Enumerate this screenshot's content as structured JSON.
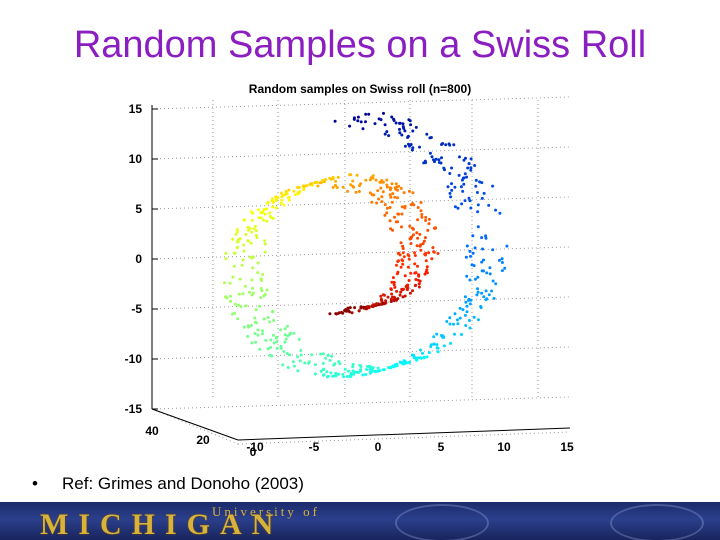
{
  "slide": {
    "title": "Random Samples on a Swiss Roll",
    "bullet": "•",
    "reference": "Ref: Grimes and Donoho (2003)"
  },
  "footer": {
    "logo_text": "MICHIGAN",
    "university_text": "University of"
  },
  "chart_data": {
    "type": "scatter",
    "title": "Random samples on Swiss roll (n=800)",
    "zlim": [
      -15,
      15
    ],
    "z_ticks": [
      "15",
      "10",
      "5",
      "0",
      "-5",
      "-10",
      "-15"
    ],
    "x_ticks": [
      "-10",
      "-5",
      "0",
      "5",
      "10",
      "15"
    ],
    "y_ticks": [
      "40",
      "20",
      "0"
    ],
    "n": 800,
    "manifold": "swiss roll",
    "colormap": [
      "#00008f",
      "#0060ff",
      "#00ffff",
      "#80ff80",
      "#ffff00",
      "#ff8000",
      "#ff2000",
      "#800000"
    ],
    "grid": true
  }
}
